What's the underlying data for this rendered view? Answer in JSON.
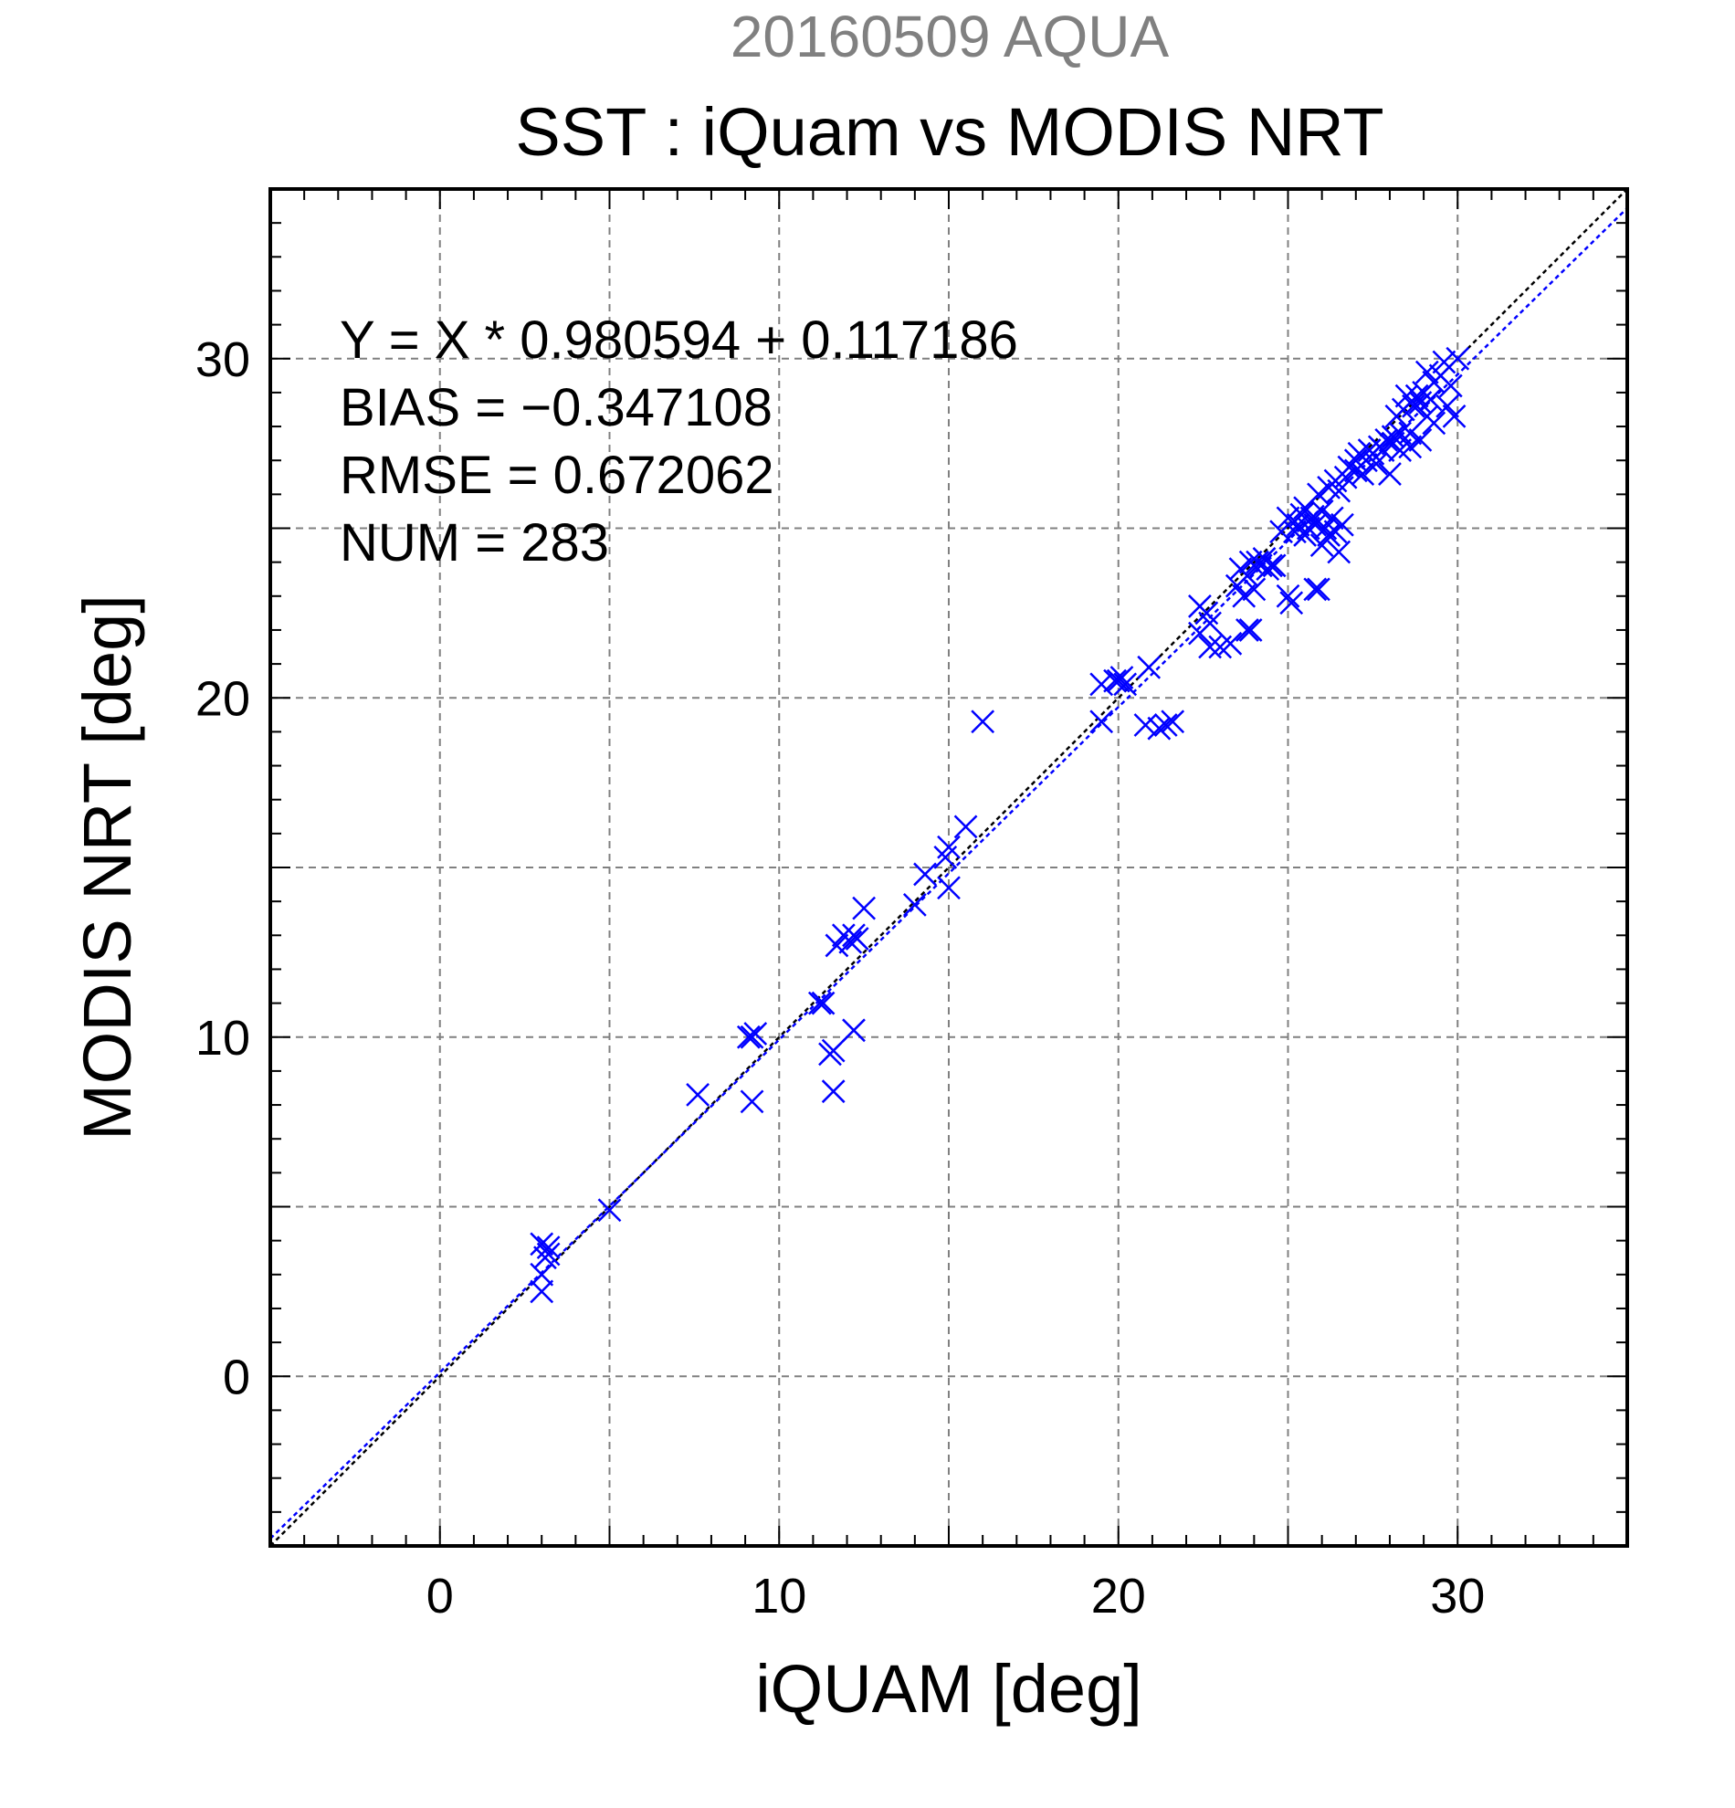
{
  "chart_data": {
    "type": "scatter",
    "supertitle": "20160509 AQUA",
    "title": "SST : iQuam vs MODIS NRT",
    "xlabel": "iQUAM [deg]",
    "ylabel": "MODIS NRT [deg]",
    "xlim": [
      -5,
      35
    ],
    "ylim": [
      -5,
      35
    ],
    "xticks": [
      0,
      10,
      20,
      30
    ],
    "yticks": [
      0,
      10,
      20,
      30
    ],
    "grid": true,
    "colors": {
      "points": "#0000ff",
      "fit_line": "#0000ff",
      "identity_line": "#000000",
      "supertitle": "#808080",
      "grid": "#808080"
    },
    "marker": "x",
    "annotations": [
      "Y = X * 0.980594 + 0.117186",
      "BIAS = −0.347108",
      "RMSE = 0.672062",
      "NUM = 283"
    ],
    "fit": {
      "slope": 0.980594,
      "intercept": 0.117186
    },
    "identity": {
      "slope": 1,
      "intercept": 0
    },
    "points": [
      [
        3.0,
        2.5
      ],
      [
        3.0,
        3.0
      ],
      [
        3.1,
        3.5
      ],
      [
        3.2,
        3.8
      ],
      [
        3.0,
        3.9
      ],
      [
        3.2,
        3.6
      ],
      [
        5.0,
        4.9
      ],
      [
        7.6,
        8.3
      ],
      [
        9.2,
        8.1
      ],
      [
        9.1,
        10.0
      ],
      [
        9.3,
        10.1
      ],
      [
        9.2,
        10.0
      ],
      [
        11.2,
        11.0
      ],
      [
        11.3,
        11.0
      ],
      [
        11.5,
        9.5
      ],
      [
        11.6,
        9.6
      ],
      [
        11.6,
        8.4
      ],
      [
        11.7,
        12.7
      ],
      [
        11.9,
        13.0
      ],
      [
        12.1,
        12.8
      ],
      [
        12.3,
        12.9
      ],
      [
        12.2,
        13.0
      ],
      [
        12.2,
        10.2
      ],
      [
        12.5,
        13.8
      ],
      [
        14.0,
        13.9
      ],
      [
        14.3,
        14.8
      ],
      [
        14.9,
        15.3
      ],
      [
        15.0,
        15.6
      ],
      [
        15.0,
        14.4
      ],
      [
        15.5,
        16.2
      ],
      [
        16.0,
        19.3
      ],
      [
        19.5,
        19.3
      ],
      [
        19.5,
        20.4
      ],
      [
        19.9,
        20.5
      ],
      [
        20.0,
        20.5
      ],
      [
        20.1,
        20.6
      ],
      [
        20.2,
        20.4
      ],
      [
        20.8,
        19.2
      ],
      [
        20.9,
        20.9
      ],
      [
        21.2,
        19.1
      ],
      [
        21.4,
        19.2
      ],
      [
        21.6,
        19.3
      ],
      [
        22.4,
        21.9
      ],
      [
        22.4,
        22.7
      ],
      [
        22.6,
        22.5
      ],
      [
        22.7,
        22.2
      ],
      [
        22.7,
        21.5
      ],
      [
        23.0,
        21.5
      ],
      [
        23.3,
        21.6
      ],
      [
        23.5,
        23.3
      ],
      [
        23.6,
        23.8
      ],
      [
        23.7,
        23.0
      ],
      [
        23.8,
        23.6
      ],
      [
        23.8,
        22.0
      ],
      [
        23.9,
        24.0
      ],
      [
        23.9,
        22.0
      ],
      [
        24.0,
        23.2
      ],
      [
        24.1,
        24.0
      ],
      [
        24.2,
        23.9
      ],
      [
        24.3,
        24.1
      ],
      [
        24.4,
        23.8
      ],
      [
        24.5,
        23.9
      ],
      [
        24.6,
        23.9
      ],
      [
        24.8,
        24.9
      ],
      [
        25.0,
        23.0
      ],
      [
        25.0,
        25.3
      ],
      [
        25.1,
        22.8
      ],
      [
        25.2,
        24.9
      ],
      [
        25.3,
        25.1
      ],
      [
        25.4,
        25.4
      ],
      [
        25.5,
        24.8
      ],
      [
        25.5,
        25.6
      ],
      [
        25.6,
        25.0
      ],
      [
        25.7,
        25.3
      ],
      [
        25.8,
        25.1
      ],
      [
        25.8,
        23.2
      ],
      [
        25.9,
        23.2
      ],
      [
        25.9,
        26.0
      ],
      [
        26.0,
        25.5
      ],
      [
        26.0,
        24.5
      ],
      [
        26.1,
        25.0
      ],
      [
        26.2,
        24.8
      ],
      [
        26.2,
        26.2
      ],
      [
        26.3,
        25.3
      ],
      [
        26.4,
        24.9
      ],
      [
        26.4,
        26.4
      ],
      [
        26.5,
        26.1
      ],
      [
        26.5,
        24.3
      ],
      [
        26.6,
        25.1
      ],
      [
        26.7,
        26.5
      ],
      [
        26.8,
        26.8
      ],
      [
        27.0,
        26.7
      ],
      [
        27.0,
        27.0
      ],
      [
        27.1,
        27.2
      ],
      [
        27.2,
        26.6
      ],
      [
        27.3,
        27.0
      ],
      [
        27.4,
        27.3
      ],
      [
        27.5,
        27.2
      ],
      [
        27.6,
        26.9
      ],
      [
        27.7,
        27.4
      ],
      [
        27.8,
        27.3
      ],
      [
        27.9,
        27.6
      ],
      [
        28.0,
        26.6
      ],
      [
        28.1,
        27.5
      ],
      [
        28.1,
        27.7
      ],
      [
        28.2,
        28.3
      ],
      [
        28.3,
        27.8
      ],
      [
        28.3,
        27.3
      ],
      [
        28.4,
        28.5
      ],
      [
        28.5,
        28.9
      ],
      [
        28.6,
        27.8
      ],
      [
        28.6,
        27.4
      ],
      [
        28.7,
        28.6
      ],
      [
        28.8,
        28.9
      ],
      [
        28.9,
        28.7
      ],
      [
        28.9,
        27.6
      ],
      [
        29.0,
        29.0
      ],
      [
        29.1,
        28.3
      ],
      [
        29.1,
        29.6
      ],
      [
        29.2,
        28.8
      ],
      [
        29.3,
        29.3
      ],
      [
        29.3,
        28.1
      ],
      [
        29.5,
        29.5
      ],
      [
        29.6,
        29.9
      ],
      [
        29.7,
        28.6
      ],
      [
        29.8,
        29.2
      ],
      [
        29.9,
        28.3
      ],
      [
        30.0,
        30.0
      ]
    ]
  }
}
